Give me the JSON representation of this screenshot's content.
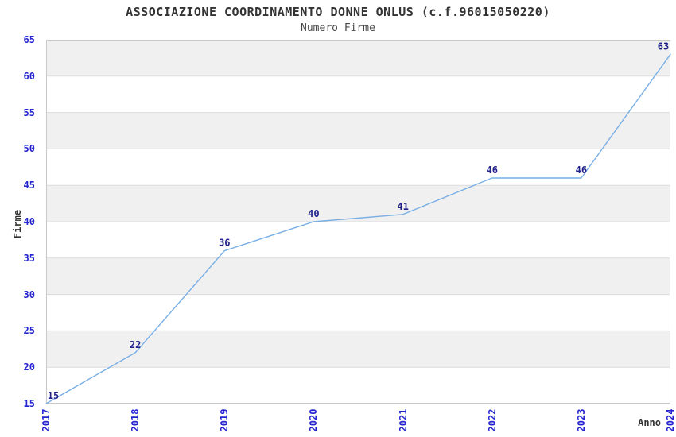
{
  "chart_data": {
    "type": "line",
    "title": "ASSOCIAZIONE COORDINAMENTO DONNE ONLUS (c.f.96015050220)",
    "subtitle": "Numero Firme",
    "xlabel": "Anno",
    "ylabel": "Firme",
    "categories": [
      "2017",
      "2018",
      "2019",
      "2020",
      "2021",
      "2022",
      "2023",
      "2024"
    ],
    "values": [
      15,
      22,
      36,
      40,
      41,
      46,
      46,
      63
    ],
    "ylim": [
      15,
      65
    ],
    "ytick_step": 5,
    "grid": true,
    "legend": "none",
    "show_data_labels": true,
    "colors": {
      "line": "#79afe5",
      "band_dark": "#f0f0f0",
      "band_light": "#ffffff",
      "gridline": "#dcdcdc",
      "plot_border": "#c9c9c9",
      "tick_label": "#2525cf",
      "data_label": "#21218c",
      "title_text": "#333333",
      "axis_label_text": "#333333",
      "background": "#ffffff"
    }
  }
}
